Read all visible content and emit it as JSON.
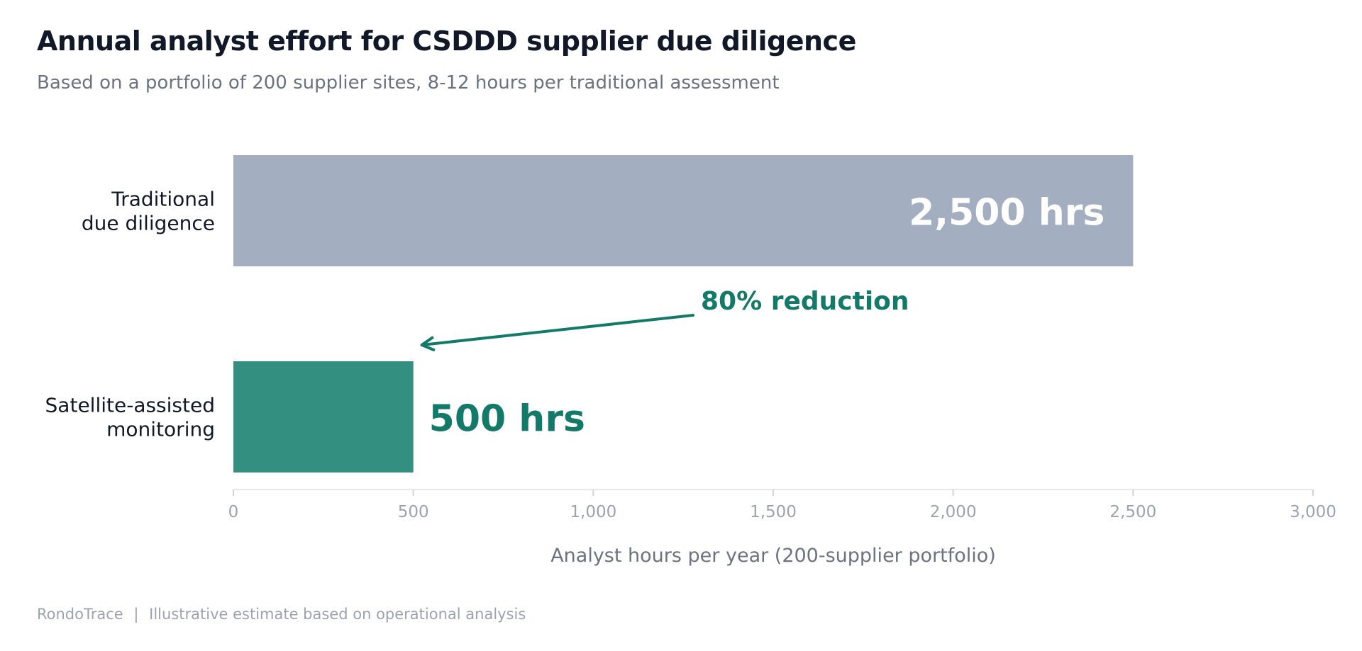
{
  "title": "Annual analyst effort for CSDDD supplier due diligence",
  "subtitle": "Based on a portfolio of 200 supplier sites, 8-12 hours per traditional assessment",
  "chart_data": {
    "type": "bar",
    "orientation": "horizontal",
    "categories": [
      [
        "Traditional",
        "due diligence"
      ],
      [
        "Satellite-assisted",
        "monitoring"
      ]
    ],
    "values": [
      2500,
      500
    ],
    "value_labels": [
      "2,500 hrs",
      "500 hrs"
    ],
    "colors": [
      "#a3afc0",
      "#338f80"
    ],
    "value_label_colors": [
      "#ffffff",
      "#137a69"
    ],
    "xlabel": "Analyst hours per year (200-supplier portfolio)",
    "xlim": [
      0,
      3000
    ],
    "xticks": [
      0,
      500,
      1000,
      1500,
      2000,
      2500,
      3000
    ],
    "xtick_labels": [
      "0",
      "500",
      "1,000",
      "1,500",
      "2,000",
      "2,500",
      "3,000"
    ],
    "grid": false,
    "annotation": {
      "text": "80% reduction",
      "color": "#137a69",
      "points_to": "Satellite-assisted bar end"
    }
  },
  "footer": {
    "brand": "RondoTrace",
    "separator": "|",
    "note": "Illustrative estimate based on operational analysis"
  }
}
